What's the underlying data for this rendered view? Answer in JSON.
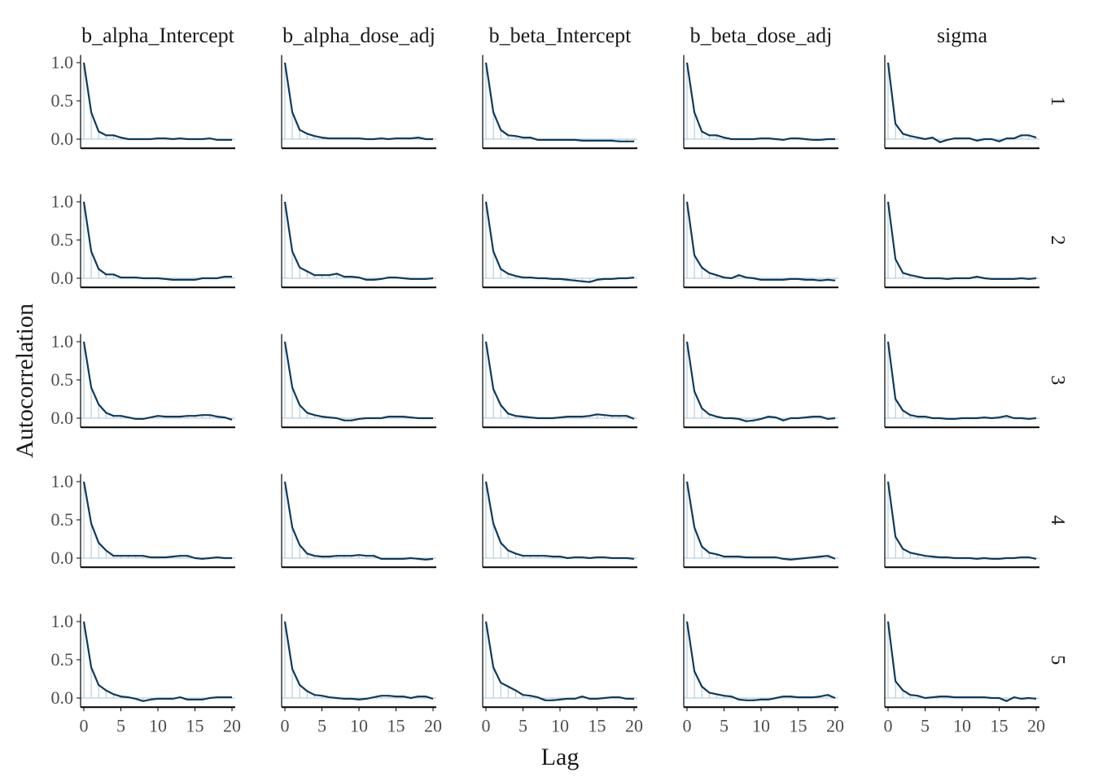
{
  "chart_data": {
    "type": "line",
    "xlabel": "Lag",
    "ylabel": "Autocorrelation",
    "xlim": [
      0,
      20
    ],
    "ylim": [
      -0.12,
      1.1
    ],
    "x_ticks": [
      0,
      5,
      10,
      15,
      20
    ],
    "x_tick_labels": [
      "0",
      "5",
      "10",
      "15",
      "20"
    ],
    "y_ticks": [
      0,
      0.5,
      1
    ],
    "y_tick_labels": [
      "0.0",
      "0.5",
      "1.0"
    ],
    "grid": false,
    "columns": [
      "b_alpha_Intercept",
      "b_alpha_dose_adj",
      "b_beta_Intercept",
      "b_beta_dose_adj",
      "sigma"
    ],
    "column_labels": [
      "b_alpha_Intercept",
      "b_alpha_dose_adj",
      "b_beta_Intercept",
      "b_beta_dose_adj",
      "sigma"
    ],
    "rows": [
      "1",
      "2",
      "3",
      "4",
      "5"
    ],
    "lags": [
      0,
      1,
      2,
      3,
      4,
      5,
      6,
      7,
      8,
      9,
      10,
      11,
      12,
      13,
      14,
      15,
      16,
      17,
      18,
      19,
      20
    ],
    "colors": {
      "line": "#0d3b5e",
      "stem": "#a9c6d9",
      "axis": "#000000"
    },
    "panels": [
      [
        [
          1.0,
          0.35,
          0.1,
          0.05,
          0.05,
          0.02,
          0.0,
          0.0,
          0.0,
          0.0,
          0.01,
          0.01,
          0.0,
          0.01,
          0.0,
          0.0,
          0.0,
          0.01,
          -0.01,
          -0.01,
          -0.01
        ],
        [
          1.0,
          0.35,
          0.12,
          0.07,
          0.04,
          0.02,
          0.01,
          0.01,
          0.01,
          0.01,
          0.01,
          0.0,
          0.0,
          0.01,
          0.0,
          0.01,
          0.01,
          0.01,
          0.02,
          0.0,
          0.0
        ],
        [
          1.0,
          0.35,
          0.12,
          0.05,
          0.04,
          0.02,
          0.02,
          -0.01,
          -0.01,
          -0.01,
          -0.01,
          -0.01,
          -0.01,
          -0.02,
          -0.02,
          -0.02,
          -0.02,
          -0.02,
          -0.03,
          -0.03,
          -0.03
        ],
        [
          1.0,
          0.35,
          0.1,
          0.05,
          0.05,
          0.02,
          0.0,
          0.0,
          0.0,
          0.0,
          0.01,
          0.01,
          0.0,
          -0.01,
          0.01,
          0.01,
          0.0,
          -0.01,
          -0.01,
          0.0,
          0.0
        ],
        [
          1.0,
          0.2,
          0.07,
          0.04,
          0.02,
          0.0,
          0.02,
          -0.04,
          -0.01,
          0.01,
          0.01,
          0.01,
          -0.02,
          0.0,
          0.0,
          -0.03,
          0.01,
          0.01,
          0.05,
          0.05,
          0.02
        ]
      ],
      [
        [
          1.0,
          0.35,
          0.12,
          0.05,
          0.05,
          0.01,
          0.01,
          0.01,
          0.0,
          0.0,
          0.0,
          -0.01,
          -0.02,
          -0.02,
          -0.02,
          -0.02,
          0.0,
          0.0,
          0.0,
          0.02,
          0.02
        ],
        [
          1.0,
          0.35,
          0.14,
          0.09,
          0.04,
          0.04,
          0.04,
          0.06,
          0.02,
          0.02,
          0.01,
          -0.02,
          -0.02,
          -0.01,
          0.01,
          0.01,
          0.0,
          -0.01,
          -0.01,
          -0.01,
          0.0
        ],
        [
          1.0,
          0.35,
          0.12,
          0.06,
          0.03,
          0.01,
          0.01,
          0.0,
          0.0,
          -0.01,
          -0.01,
          -0.02,
          -0.03,
          -0.04,
          -0.05,
          -0.02,
          -0.01,
          -0.01,
          0.0,
          0.0,
          0.01
        ],
        [
          1.0,
          0.3,
          0.14,
          0.07,
          0.04,
          0.01,
          0.0,
          0.04,
          0.01,
          0.0,
          -0.02,
          -0.02,
          -0.02,
          -0.02,
          -0.01,
          -0.01,
          -0.02,
          -0.02,
          -0.03,
          -0.02,
          -0.03
        ],
        [
          1.0,
          0.25,
          0.07,
          0.04,
          0.02,
          0.0,
          0.0,
          0.0,
          -0.01,
          0.0,
          0.0,
          0.0,
          0.02,
          0.0,
          -0.01,
          -0.01,
          -0.01,
          -0.01,
          0.0,
          -0.01,
          0.0
        ]
      ],
      [
        [
          1.0,
          0.4,
          0.18,
          0.07,
          0.03,
          0.03,
          0.01,
          -0.01,
          -0.01,
          0.01,
          0.03,
          0.02,
          0.02,
          0.02,
          0.03,
          0.03,
          0.04,
          0.04,
          0.02,
          0.01,
          -0.02
        ],
        [
          1.0,
          0.4,
          0.17,
          0.07,
          0.04,
          0.02,
          0.01,
          0.0,
          -0.03,
          -0.03,
          -0.01,
          0.0,
          0.0,
          0.0,
          0.02,
          0.02,
          0.02,
          0.01,
          0.0,
          0.0,
          0.0
        ],
        [
          1.0,
          0.38,
          0.17,
          0.06,
          0.03,
          0.02,
          0.01,
          0.0,
          0.0,
          0.0,
          0.01,
          0.02,
          0.02,
          0.02,
          0.03,
          0.05,
          0.04,
          0.03,
          0.03,
          0.03,
          -0.01
        ],
        [
          1.0,
          0.35,
          0.13,
          0.05,
          0.02,
          0.0,
          0.0,
          -0.01,
          -0.04,
          -0.03,
          -0.01,
          0.02,
          0.01,
          -0.03,
          0.0,
          0.0,
          0.01,
          0.02,
          0.02,
          -0.01,
          0.0
        ],
        [
          1.0,
          0.25,
          0.1,
          0.04,
          0.02,
          0.02,
          0.0,
          0.0,
          -0.01,
          -0.01,
          0.0,
          0.0,
          0.0,
          0.01,
          0.0,
          0.01,
          0.03,
          0.0,
          0.0,
          -0.01,
          0.0
        ]
      ],
      [
        [
          1.0,
          0.45,
          0.2,
          0.1,
          0.03,
          0.03,
          0.03,
          0.03,
          0.03,
          0.01,
          0.01,
          0.01,
          0.02,
          0.03,
          0.03,
          0.0,
          -0.01,
          0.0,
          0.01,
          0.0,
          0.0
        ],
        [
          1.0,
          0.4,
          0.17,
          0.06,
          0.03,
          0.02,
          0.02,
          0.03,
          0.03,
          0.03,
          0.04,
          0.03,
          0.03,
          -0.01,
          -0.01,
          -0.01,
          -0.01,
          0.0,
          -0.01,
          -0.02,
          -0.01
        ],
        [
          1.0,
          0.45,
          0.2,
          0.1,
          0.06,
          0.03,
          0.03,
          0.03,
          0.03,
          0.02,
          0.02,
          0.0,
          0.01,
          0.01,
          0.0,
          0.01,
          0.01,
          0.0,
          0.0,
          0.0,
          -0.01
        ],
        [
          1.0,
          0.4,
          0.15,
          0.07,
          0.05,
          0.02,
          0.02,
          0.02,
          0.01,
          0.01,
          0.01,
          0.01,
          0.01,
          -0.01,
          -0.02,
          -0.01,
          0.0,
          0.01,
          0.02,
          0.03,
          -0.01
        ],
        [
          1.0,
          0.28,
          0.12,
          0.07,
          0.05,
          0.03,
          0.02,
          0.01,
          0.01,
          0.0,
          0.0,
          0.0,
          -0.01,
          0.0,
          -0.01,
          -0.01,
          0.0,
          0.0,
          0.01,
          0.01,
          -0.01
        ]
      ],
      [
        [
          1.0,
          0.4,
          0.17,
          0.1,
          0.05,
          0.02,
          0.01,
          -0.01,
          -0.04,
          -0.02,
          -0.01,
          -0.01,
          -0.01,
          0.01,
          -0.02,
          -0.02,
          -0.02,
          0.0,
          0.01,
          0.01,
          0.01
        ],
        [
          1.0,
          0.38,
          0.17,
          0.09,
          0.04,
          0.03,
          0.01,
          0.0,
          -0.01,
          -0.01,
          -0.02,
          -0.01,
          0.01,
          0.03,
          0.03,
          0.02,
          0.02,
          0.0,
          0.02,
          0.02,
          -0.01
        ],
        [
          1.0,
          0.4,
          0.2,
          0.15,
          0.1,
          0.04,
          0.03,
          0.01,
          -0.03,
          -0.03,
          -0.02,
          -0.01,
          -0.01,
          0.02,
          -0.01,
          -0.01,
          0.0,
          0.01,
          0.01,
          -0.01,
          -0.01
        ],
        [
          1.0,
          0.35,
          0.15,
          0.07,
          0.05,
          0.03,
          0.02,
          -0.02,
          -0.03,
          -0.03,
          -0.02,
          -0.02,
          0.0,
          0.02,
          0.02,
          0.01,
          0.01,
          0.01,
          0.02,
          0.04,
          0.0
        ],
        [
          1.0,
          0.22,
          0.1,
          0.04,
          0.03,
          0.0,
          0.01,
          0.02,
          0.02,
          0.01,
          0.01,
          0.01,
          0.01,
          0.01,
          0.0,
          0.0,
          -0.04,
          0.01,
          -0.01,
          0.0,
          -0.01
        ]
      ]
    ]
  }
}
